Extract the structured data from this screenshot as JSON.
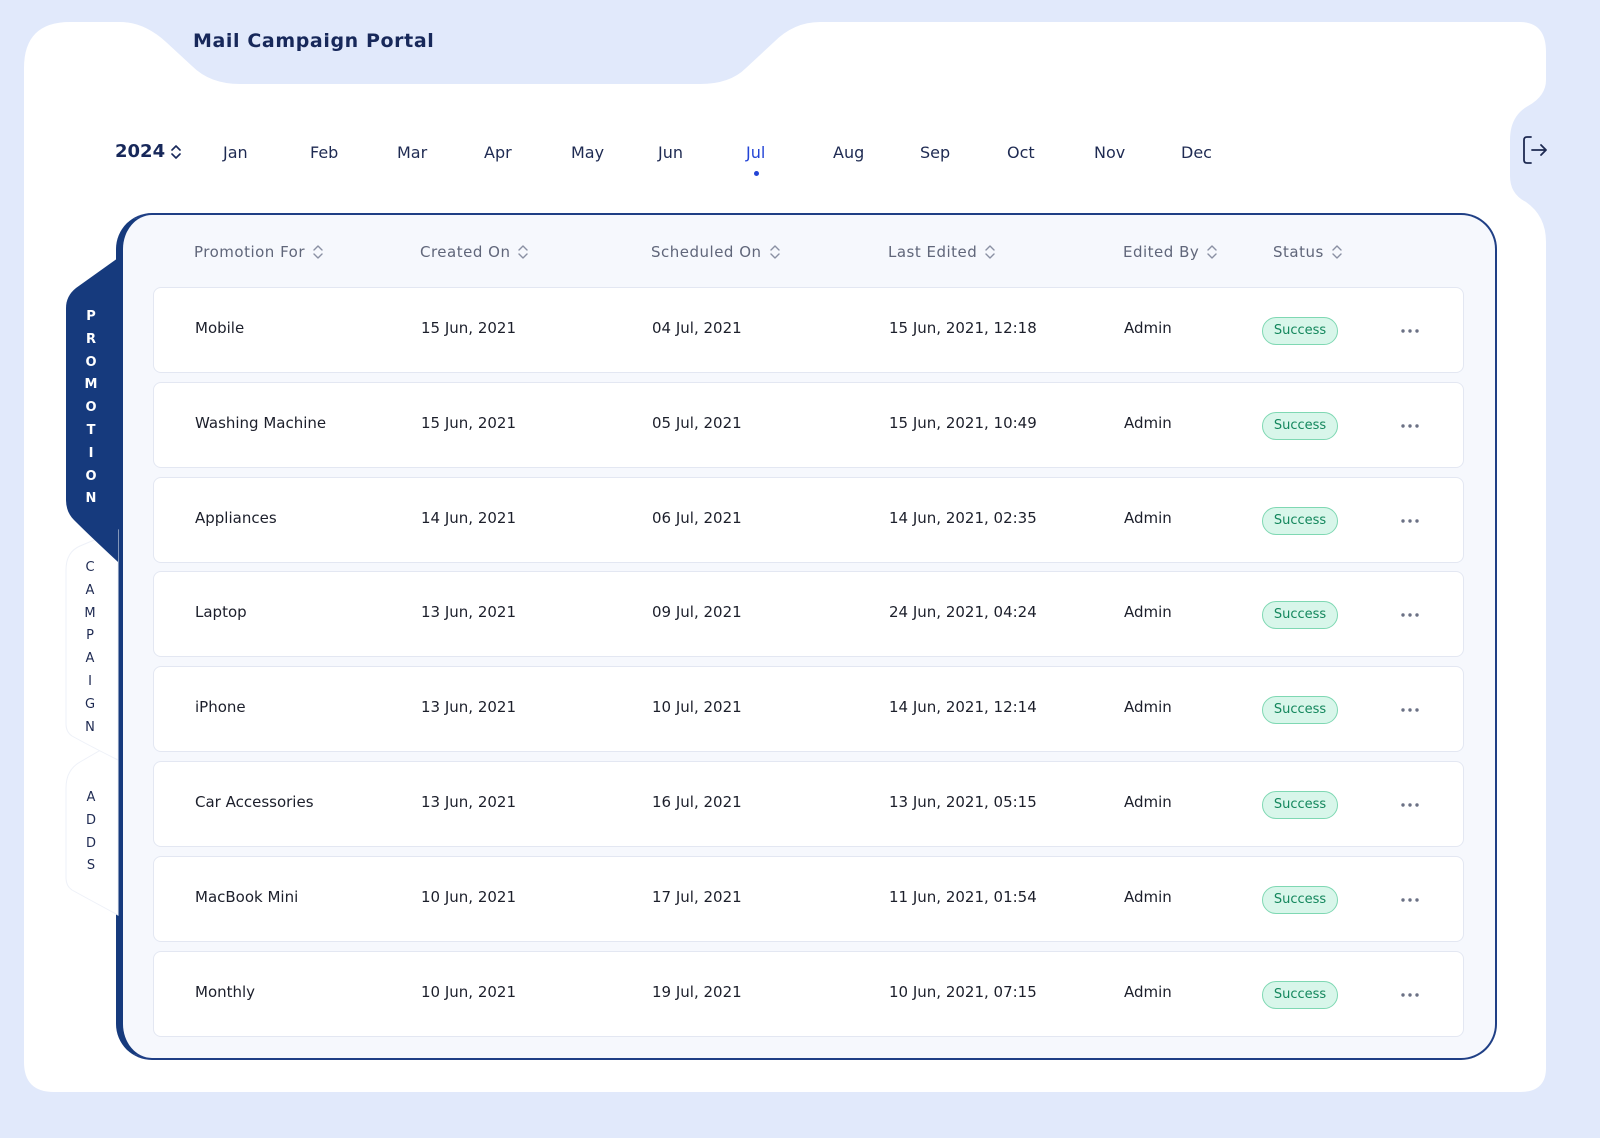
{
  "app": {
    "title": "Mail Campaign Portal"
  },
  "period": {
    "year": "2024",
    "months": [
      "Jan",
      "Feb",
      "Mar",
      "Apr",
      "May",
      "Jun",
      "Jul",
      "Aug",
      "Sep",
      "Oct",
      "Nov",
      "Dec"
    ],
    "active_month": "Jul"
  },
  "side_tabs": [
    {
      "label": "PROMOTION",
      "active": true
    },
    {
      "label": "CAMPAIGN",
      "active": false
    },
    {
      "label": "ADDS",
      "active": false
    }
  ],
  "table": {
    "columns": [
      "Promotion For",
      "Created On",
      "Scheduled On",
      "Last Edited",
      "Edited By",
      "Status"
    ],
    "rows": [
      {
        "promotion_for": "Mobile",
        "created_on": "15 Jun, 2021",
        "scheduled_on": "04 Jul, 2021",
        "last_edited": "15 Jun, 2021, 12:18",
        "edited_by": "Admin",
        "status": "Success"
      },
      {
        "promotion_for": "Washing Machine",
        "created_on": "15 Jun, 2021",
        "scheduled_on": "05 Jul, 2021",
        "last_edited": "15 Jun, 2021, 10:49",
        "edited_by": "Admin",
        "status": "Success"
      },
      {
        "promotion_for": "Appliances",
        "created_on": "14 Jun, 2021",
        "scheduled_on": "06 Jul, 2021",
        "last_edited": "14 Jun, 2021, 02:35",
        "edited_by": "Admin",
        "status": "Success"
      },
      {
        "promotion_for": "Laptop",
        "created_on": "13 Jun, 2021",
        "scheduled_on": "09 Jul, 2021",
        "last_edited": "24 Jun, 2021, 04:24",
        "edited_by": "Admin",
        "status": "Success"
      },
      {
        "promotion_for": "iPhone",
        "created_on": "13 Jun, 2021",
        "scheduled_on": "10 Jul, 2021",
        "last_edited": "14 Jun, 2021, 12:14",
        "edited_by": "Admin",
        "status": "Success"
      },
      {
        "promotion_for": "Car Accessories",
        "created_on": "13 Jun, 2021",
        "scheduled_on": "16 Jul, 2021",
        "last_edited": "13 Jun, 2021, 05:15",
        "edited_by": "Admin",
        "status": "Success"
      },
      {
        "promotion_for": "MacBook Mini",
        "created_on": "10 Jun, 2021",
        "scheduled_on": "17 Jul, 2021",
        "last_edited": "11 Jun, 2021, 01:54",
        "edited_by": "Admin",
        "status": "Success"
      },
      {
        "promotion_for": "Monthly",
        "created_on": "10 Jun, 2021",
        "scheduled_on": "19 Jul, 2021",
        "last_edited": "10 Jun, 2021, 07:15",
        "edited_by": "Admin",
        "status": "Success"
      }
    ]
  },
  "colors": {
    "page_bg": "#e1e9fb",
    "navy": "#163a7d",
    "accent_blue": "#2344d6",
    "success_bg": "#d8f6ea",
    "success_text": "#14875d"
  },
  "icons": {
    "logout": "logout-icon",
    "sort": "sort-icon",
    "more": "more-horizontal-icon"
  }
}
